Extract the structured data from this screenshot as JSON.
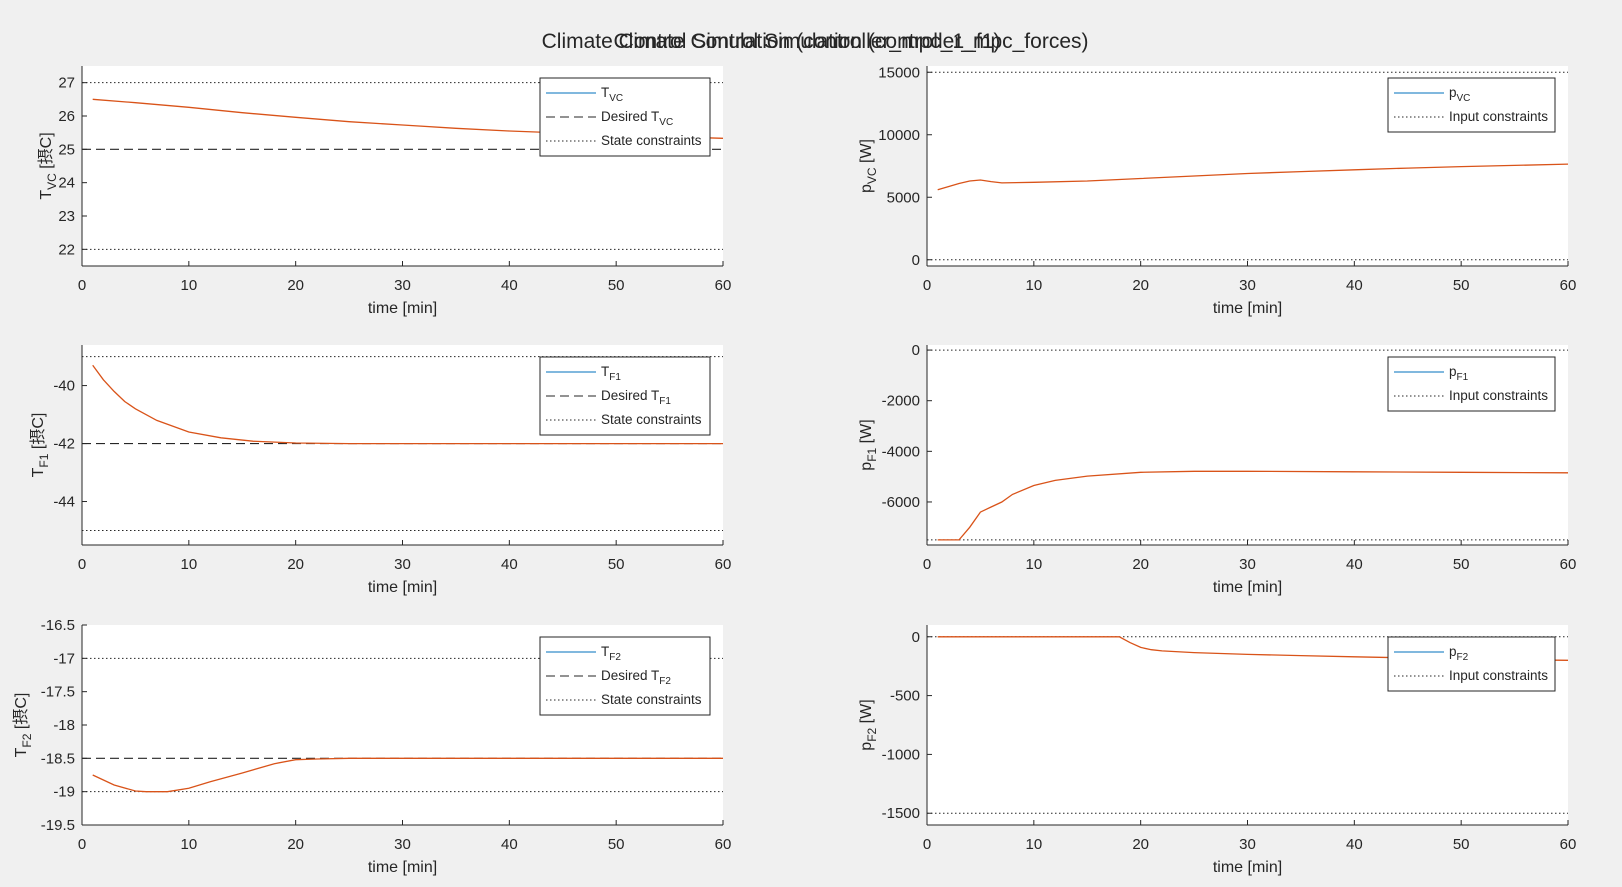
{
  "figure": {
    "titles": [
      "Climate Control Simulation (controller_mpc_1_f1)",
      "Climate Control Simulation (controller_mpc_forces)"
    ]
  },
  "colors": {
    "background": "#f0f0f0",
    "axes_bg": "#ffffff",
    "blue": "#0072bd",
    "orange": "#d95319",
    "desired": "#262626",
    "constraint": "#262626"
  },
  "chart_data": [
    {
      "type": "line",
      "panel": "row1-left",
      "xlabel": "time [min]",
      "ylabel": {
        "base": "T",
        "sub": "VC",
        "unit": " [摂C]"
      },
      "xlim": [
        0,
        60
      ],
      "ylim": [
        21.5,
        27.5
      ],
      "xticks": [
        0,
        10,
        20,
        30,
        40,
        50,
        60
      ],
      "yticks": [
        22,
        23,
        24,
        25,
        26,
        27
      ],
      "ytick_labels": [
        "22",
        "23",
        "24",
        "25",
        "26",
        "27"
      ],
      "grid": false,
      "legend_position": "top-right",
      "legend": [
        {
          "base": "T",
          "sub": "VC",
          "after": "",
          "style": "solid-blue"
        },
        {
          "base": "Desired T",
          "sub": "VC",
          "after": "",
          "style": "dashed"
        },
        {
          "base": "State constraints",
          "sub": "",
          "after": "",
          "style": "dotted"
        }
      ],
      "series": [
        {
          "style": "solid-orange",
          "x": [
            1,
            5,
            10,
            15,
            20,
            25,
            30,
            35,
            40,
            45,
            50,
            55,
            60
          ],
          "y": [
            26.5,
            26.4,
            26.26,
            26.1,
            25.96,
            25.83,
            25.73,
            25.63,
            25.55,
            25.49,
            25.43,
            25.38,
            25.33
          ]
        }
      ],
      "desired": 25,
      "constraints": [
        22,
        27
      ]
    },
    {
      "type": "line",
      "panel": "row1-right",
      "xlabel": "time [min]",
      "ylabel": {
        "base": "p",
        "sub": "VC",
        "unit": " [W]"
      },
      "xlim": [
        0,
        60
      ],
      "ylim": [
        -500,
        15500
      ],
      "xticks": [
        0,
        10,
        20,
        30,
        40,
        50,
        60
      ],
      "yticks": [
        0,
        5000,
        10000,
        15000
      ],
      "ytick_labels": [
        "0",
        "5000",
        "10000",
        "15000"
      ],
      "grid": false,
      "legend_position": "top-right",
      "legend": [
        {
          "base": "p",
          "sub": "VC",
          "after": "",
          "style": "solid-blue"
        },
        {
          "base": "Input constraints",
          "sub": "",
          "after": "",
          "style": "dotted"
        }
      ],
      "series": [
        {
          "style": "solid-orange",
          "x": [
            1,
            2,
            3,
            4,
            5,
            6,
            7,
            10,
            15,
            20,
            25,
            30,
            35,
            40,
            45,
            50,
            55,
            60
          ],
          "y": [
            5600,
            5850,
            6100,
            6300,
            6380,
            6250,
            6150,
            6200,
            6300,
            6500,
            6700,
            6900,
            7050,
            7200,
            7330,
            7450,
            7550,
            7650
          ]
        }
      ],
      "constraints": [
        0,
        15000
      ]
    },
    {
      "type": "line",
      "panel": "row2-left",
      "xlabel": "time [min]",
      "ylabel": {
        "base": "T",
        "sub": "F1",
        "unit": " [摂C]"
      },
      "xlim": [
        0,
        60
      ],
      "ylim": [
        -45.5,
        -38.6
      ],
      "xticks": [
        0,
        10,
        20,
        30,
        40,
        50,
        60
      ],
      "yticks": [
        -44,
        -42,
        -40
      ],
      "ytick_labels": [
        "-44",
        "-42",
        "-40"
      ],
      "grid": false,
      "legend_position": "top-right",
      "legend": [
        {
          "base": "T",
          "sub": "F1",
          "after": "",
          "style": "solid-blue"
        },
        {
          "base": "Desired T",
          "sub": "F1",
          "after": "",
          "style": "dashed"
        },
        {
          "base": "State constraints",
          "sub": "",
          "after": "",
          "style": "dotted"
        }
      ],
      "series": [
        {
          "style": "solid-orange",
          "x": [
            1,
            2,
            3,
            4,
            5,
            7,
            10,
            13,
            16,
            20,
            25,
            30,
            40,
            50,
            60
          ],
          "y": [
            -39.3,
            -39.8,
            -40.2,
            -40.55,
            -40.8,
            -41.2,
            -41.6,
            -41.8,
            -41.92,
            -41.98,
            -42.0,
            -42.0,
            -42.0,
            -42.0,
            -42.0
          ]
        }
      ],
      "desired": -42,
      "constraints": [
        -39,
        -45
      ]
    },
    {
      "type": "line",
      "panel": "row2-right",
      "xlabel": "time [min]",
      "ylabel": {
        "base": "p",
        "sub": "F1",
        "unit": " [W]"
      },
      "xlim": [
        0,
        60
      ],
      "ylim": [
        -7700,
        200
      ],
      "xticks": [
        0,
        10,
        20,
        30,
        40,
        50,
        60
      ],
      "yticks": [
        -6000,
        -4000,
        -2000,
        0
      ],
      "ytick_labels": [
        "-6000",
        "-4000",
        "-2000",
        "0"
      ],
      "grid": false,
      "legend_position": "top-right",
      "legend": [
        {
          "base": "p",
          "sub": "F1",
          "after": "",
          "style": "solid-blue"
        },
        {
          "base": "Input constraints",
          "sub": "",
          "after": "",
          "style": "dotted"
        }
      ],
      "series": [
        {
          "style": "solid-orange",
          "x": [
            1,
            2,
            3,
            4,
            5,
            6,
            7,
            8,
            10,
            12,
            15,
            20,
            25,
            30,
            40,
            50,
            60
          ],
          "y": [
            -7500,
            -7500,
            -7500,
            -7000,
            -6400,
            -6200,
            -6000,
            -5700,
            -5350,
            -5150,
            -4980,
            -4830,
            -4790,
            -4790,
            -4810,
            -4830,
            -4850
          ]
        }
      ],
      "constraints": [
        0,
        -7500
      ]
    },
    {
      "type": "line",
      "panel": "row3-left",
      "xlabel": "time [min]",
      "ylabel": {
        "base": "T",
        "sub": "F2",
        "unit": " [摂C]"
      },
      "xlim": [
        0,
        60
      ],
      "ylim": [
        -19.5,
        -16.5
      ],
      "xticks": [
        0,
        10,
        20,
        30,
        40,
        50,
        60
      ],
      "yticks": [
        -19.5,
        -19,
        -18.5,
        -18,
        -17.5,
        -17,
        -16.5
      ],
      "ytick_labels": [
        "-19.5",
        "-19",
        "-18.5",
        "-18",
        "-17.5",
        "-17",
        "-16.5"
      ],
      "grid": false,
      "legend_position": "top-right",
      "legend": [
        {
          "base": "T",
          "sub": "F2",
          "after": "",
          "style": "solid-blue"
        },
        {
          "base": "Desired T",
          "sub": "F2",
          "after": "",
          "style": "dashed"
        },
        {
          "base": "State constraints",
          "sub": "",
          "after": "",
          "style": "dotted"
        }
      ],
      "series": [
        {
          "style": "solid-orange",
          "x": [
            1,
            3,
            5,
            6,
            8,
            10,
            12,
            15,
            18,
            20,
            22,
            25,
            30,
            40,
            50,
            60
          ],
          "y": [
            -18.75,
            -18.9,
            -18.99,
            -19.0,
            -19.0,
            -18.95,
            -18.85,
            -18.72,
            -18.58,
            -18.52,
            -18.51,
            -18.5,
            -18.5,
            -18.5,
            -18.5,
            -18.5
          ]
        }
      ],
      "desired": -18.5,
      "constraints": [
        -17,
        -19
      ]
    },
    {
      "type": "line",
      "panel": "row3-right",
      "xlabel": "time [min]",
      "ylabel": {
        "base": "p",
        "sub": "F2",
        "unit": " [W]"
      },
      "xlim": [
        0,
        60
      ],
      "ylim": [
        -1600,
        100
      ],
      "xticks": [
        0,
        10,
        20,
        30,
        40,
        50,
        60
      ],
      "yticks": [
        -1500,
        -1000,
        -500,
        0
      ],
      "ytick_labels": [
        "-1500",
        "-1000",
        "-500",
        "0"
      ],
      "grid": false,
      "legend_position": "top-right",
      "legend": [
        {
          "base": "p",
          "sub": "F2",
          "after": "",
          "style": "solid-blue"
        },
        {
          "base": "Input constraints",
          "sub": "",
          "after": "",
          "style": "dotted"
        }
      ],
      "series": [
        {
          "style": "solid-orange",
          "x": [
            1,
            5,
            10,
            15,
            18,
            19,
            20,
            21,
            22,
            25,
            30,
            35,
            40,
            45,
            50,
            55,
            60
          ],
          "y": [
            0,
            0,
            0,
            0,
            0,
            -50,
            -90,
            -110,
            -120,
            -135,
            -150,
            -160,
            -170,
            -180,
            -188,
            -195,
            -200
          ]
        }
      ],
      "constraints": [
        0,
        -1500
      ]
    }
  ]
}
